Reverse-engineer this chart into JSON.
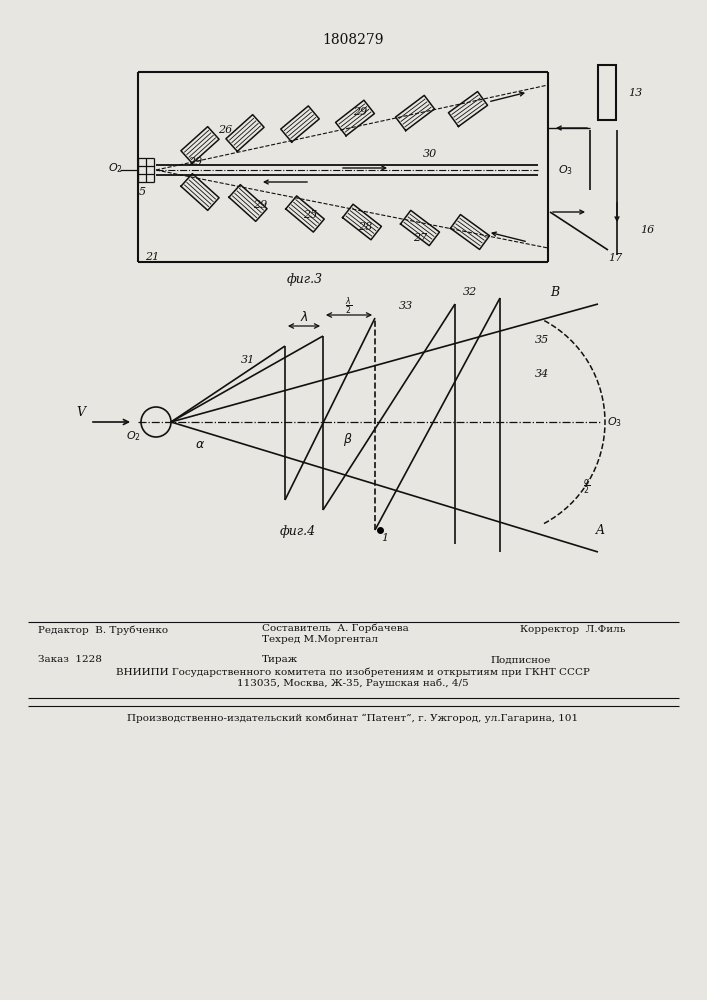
{
  "title": "1808279",
  "bg_color": "#e8e6e0",
  "line_color": "#111111",
  "fig3_label": "фиг.3",
  "fig4_label": "фиг.4",
  "footer_line1_left": "Редактор  В. Трубченко",
  "footer_line1_mid": "Составитель  А. Горбачева",
  "footer_line1_right": "Корректор  Л.Филь",
  "footer_line2_mid": "Техред М.Моргентал",
  "footer_order": "Заказ  1228",
  "footer_tiraj": "Тираж",
  "footer_podp": "Подписное",
  "footer_vniip": "ВНИИПИ Государственного комитета по изобретениям и открытиям при ГКНТ СССР",
  "footer_addr": "113035, Москва, Ж-35, Раушская наб., 4/5",
  "footer_patent": "Производственно-издательский комбинат “Патент”, г. Ужгород, ул.Гагарина, 101"
}
